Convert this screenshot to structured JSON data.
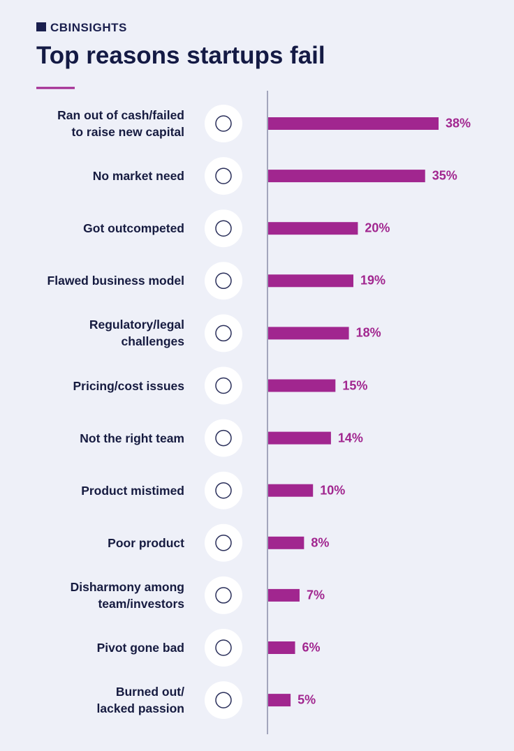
{
  "brand": "CBINSIGHTS",
  "chart_data": {
    "type": "bar",
    "orientation": "horizontal",
    "title": "Top reasons startups fail",
    "categories": [
      "Ran out of cash/failed\nto raise new capital",
      "No market need",
      "Got outcompeted",
      "Flawed business model",
      "Regulatory/legal\nchallenges",
      "Pricing/cost issues",
      "Not the right team",
      "Product mistimed",
      "Poor product",
      "Disharmony among\nteam/investors",
      "Pivot gone bad",
      "Burned out/\nlacked passion"
    ],
    "values": [
      38,
      35,
      20,
      19,
      18,
      15,
      14,
      10,
      8,
      7,
      6,
      5
    ],
    "value_labels": [
      "38%",
      "35%",
      "20%",
      "19%",
      "18%",
      "15%",
      "14%",
      "10%",
      "8%",
      "7%",
      "6%",
      "5%"
    ],
    "color": "#a1268f"
  }
}
